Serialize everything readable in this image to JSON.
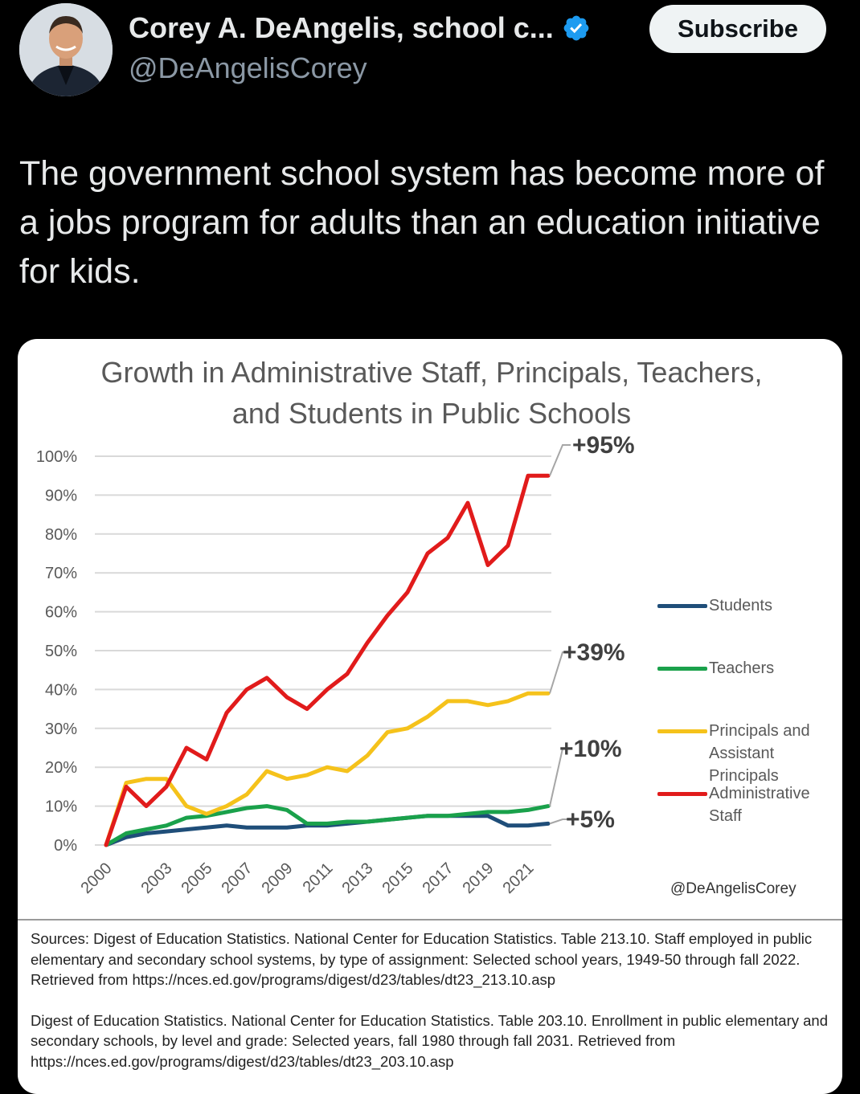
{
  "header": {
    "display_name": "Corey A. DeAngelis, school c...",
    "handle": "@DeAngelisCorey",
    "subscribe_label": "Subscribe"
  },
  "tweet": {
    "text": "The government school system has become more of a jobs program for adults than an education initiative for kids."
  },
  "chart": {
    "title": "Growth in Administrative Staff, Principals, Teachers, and Students in Public Schools",
    "watermark": "@DeAngelisCorey",
    "sources": [
      "Sources: Digest of Education Statistics. National Center for Education Statistics. Table 213.10. Staff employed in public elementary and secondary school systems, by type of assignment: Selected school years, 1949-50 through fall 2022. Retrieved from https://nces.ed.gov/programs/digest/d23/tables/dt23_213.10.asp",
      "Digest of Education Statistics. National Center for Education Statistics. Table 203.10. Enrollment in public elementary and secondary schools, by level and grade: Selected years, fall 1980 through fall 2031. Retrieved from https://nces.ed.gov/programs/digest/d23/tables/dt23_203.10.asp"
    ],
    "end_labels": {
      "admin": "+95%",
      "principals": "+39%",
      "teachers": "+10%",
      "students": "+5%"
    }
  },
  "chart_data": {
    "type": "line",
    "title": "Growth in Administrative Staff, Principals, Teachers, and Students in Public Schools",
    "x": [
      2000,
      2001,
      2002,
      2003,
      2004,
      2005,
      2006,
      2007,
      2008,
      2009,
      2010,
      2011,
      2012,
      2013,
      2014,
      2015,
      2016,
      2017,
      2018,
      2019,
      2020,
      2021,
      2022
    ],
    "x_tick_labels": [
      "2000",
      "2003",
      "2005",
      "2007",
      "2009",
      "2011",
      "2013",
      "2015",
      "2017",
      "2019",
      "2021"
    ],
    "ylim": [
      0,
      100
    ],
    "y_tick_labels": [
      "0%",
      "10%",
      "20%",
      "30%",
      "40%",
      "50%",
      "60%",
      "70%",
      "80%",
      "90%",
      "100%"
    ],
    "grid": true,
    "legend": "right",
    "series": [
      {
        "name": "Students",
        "color": "#1f4e79",
        "values": [
          0,
          2,
          3,
          3.5,
          4,
          4.5,
          5,
          4.5,
          4.5,
          4.5,
          5,
          5,
          5.5,
          6,
          6.5,
          7,
          7.5,
          7.5,
          7.5,
          7.5,
          5,
          5,
          5.5
        ]
      },
      {
        "name": "Teachers",
        "color": "#1aa14b",
        "values": [
          0,
          3,
          4,
          5,
          7,
          7.5,
          8.5,
          9.5,
          10,
          9,
          5.5,
          5.5,
          6,
          6,
          6.5,
          7,
          7.5,
          7.5,
          8,
          8.5,
          8.5,
          9,
          10
        ]
      },
      {
        "name": "Principals and Assistant Principals",
        "color": "#f5c21b",
        "values": [
          0,
          16,
          17,
          17,
          10,
          8,
          10,
          13,
          19,
          17,
          18,
          20,
          19,
          23,
          29,
          30,
          33,
          37,
          37,
          36,
          37,
          39,
          39
        ]
      },
      {
        "name": "Administrative Staff",
        "color": "#e11b1b",
        "values": [
          0,
          15,
          10,
          15,
          25,
          22,
          34,
          40,
          43,
          38,
          35,
          40,
          44,
          52,
          59,
          65,
          75,
          79,
          88,
          72,
          77,
          95,
          95
        ]
      }
    ]
  }
}
